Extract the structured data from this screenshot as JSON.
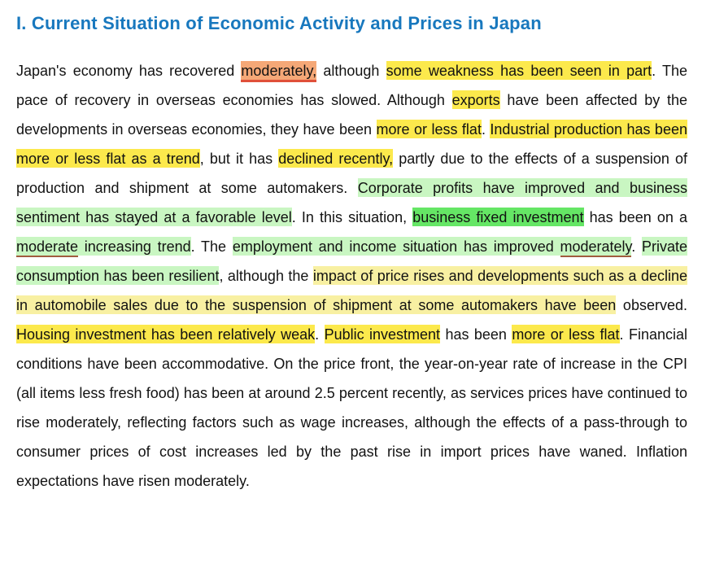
{
  "heading": {
    "title": "I. Current Situation of Economic Activity and Prices in Japan"
  },
  "colors": {
    "heading": "#1878be",
    "highlight_yellow": "#fce94c",
    "highlight_yellow_pale": "#f8f0a2",
    "highlight_green_light": "#c9f6c2",
    "highlight_green_bright": "#65e665",
    "highlight_orange": "#f5a877",
    "underline_red": "#e0503a",
    "underline_brown": "#a15c3e"
  },
  "paragraph": {
    "runs": [
      {
        "text": "Japan's economy has recovered ",
        "style": "plain"
      },
      {
        "text": "moderately,",
        "style": "orange-underline"
      },
      {
        "text": " although ",
        "style": "plain"
      },
      {
        "text": "some weakness has been seen in part",
        "style": "yellow"
      },
      {
        "text": ". The pace of recovery in overseas economies has slowed. Although ",
        "style": "plain"
      },
      {
        "text": "exports",
        "style": "yellow"
      },
      {
        "text": " have been affected by the developments in overseas economies, they have been ",
        "style": "plain"
      },
      {
        "text": "more or less flat",
        "style": "yellow"
      },
      {
        "text": ". ",
        "style": "plain"
      },
      {
        "text": "Industrial production has been more or less flat as a trend",
        "style": "yellow"
      },
      {
        "text": ", but it has ",
        "style": "plain"
      },
      {
        "text": "declined recently,",
        "style": "yellow"
      },
      {
        "text": " partly due to the effects of a suspension of production and shipment at some automakers. ",
        "style": "plain"
      },
      {
        "text": "Corporate profits have improved and business sentiment has stayed at a favorable level",
        "style": "green-light"
      },
      {
        "text": ". In this situation, ",
        "style": "plain"
      },
      {
        "text": "business fixed investment",
        "style": "green-bright"
      },
      {
        "text": " has been on a ",
        "style": "plain"
      },
      {
        "text": "moderate",
        "style": "green-light-underline"
      },
      {
        "text": " increasing trend",
        "style": "green-light"
      },
      {
        "text": ". The ",
        "style": "plain"
      },
      {
        "text": "employment and income situation has improved ",
        "style": "green-light"
      },
      {
        "text": "moderately",
        "style": "green-light-underline"
      },
      {
        "text": ". ",
        "style": "plain"
      },
      {
        "text": "Private consumption has been resilient",
        "style": "green-light"
      },
      {
        "text": ", although the ",
        "style": "plain"
      },
      {
        "text": "impact of price rises and developments such as a decline in automobile sales due to the suspension of shipment at some automakers have been",
        "style": "yellow-pale"
      },
      {
        "text": " observed. ",
        "style": "plain"
      },
      {
        "text": "Housing investment has been relatively weak",
        "style": "yellow"
      },
      {
        "text": ". ",
        "style": "plain"
      },
      {
        "text": "Public investment",
        "style": "yellow"
      },
      {
        "text": " has been ",
        "style": "plain"
      },
      {
        "text": "more or less flat",
        "style": "yellow"
      },
      {
        "text": ". Financial conditions have been accommodative. On the price front, the year-on-year rate of increase in the CPI (all items less fresh food) has been at around 2.5 percent recently, as services prices have continued to rise moderately, reflecting factors such as wage increases, although the effects of a pass-through to consumer prices of cost increases led by the past rise in import prices have waned. Inflation expectations have risen moderately.",
        "style": "plain"
      }
    ]
  }
}
